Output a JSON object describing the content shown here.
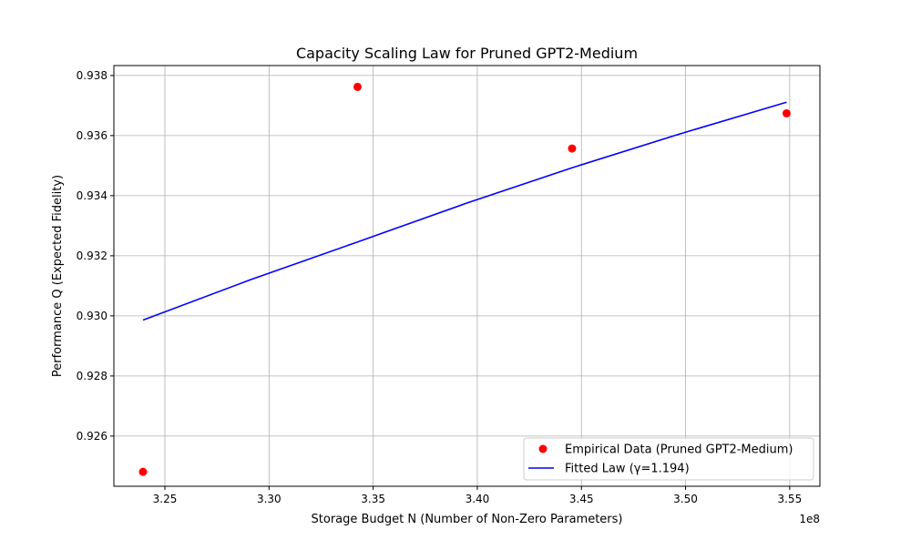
{
  "chart_data": {
    "type": "scatter",
    "title": "Capacity Scaling Law for Pruned GPT2-Medium",
    "xlabel": "Storage Budget N (Number of Non-Zero Parameters)",
    "ylabel": "Performance Q (Expected Fidelity)",
    "x_offset_label": "1e8",
    "xlim": [
      3.2255,
      3.5645
    ],
    "ylim": [
      0.92433,
      0.93833
    ],
    "x_ticks": [
      3.25,
      3.3,
      3.35,
      3.4,
      3.45,
      3.5,
      3.55
    ],
    "x_tick_labels": [
      "3.25",
      "3.30",
      "3.35",
      "3.40",
      "3.45",
      "3.50",
      "3.55"
    ],
    "y_ticks": [
      0.926,
      0.928,
      0.93,
      0.932,
      0.934,
      0.936,
      0.938
    ],
    "y_tick_labels": [
      "0.926",
      "0.928",
      "0.930",
      "0.932",
      "0.934",
      "0.936",
      "0.938"
    ],
    "grid": true,
    "legend_position": "lower-right",
    "series": [
      {
        "name": "Empirical Data (Pruned GPT2-Medium)",
        "kind": "scatter",
        "color": "#ff0000",
        "x": [
          3.2395,
          3.3425,
          3.4455,
          3.5485
        ],
        "y": [
          0.92481,
          0.93762,
          0.93557,
          0.93674
        ]
      },
      {
        "name": "Fitted Law (γ=1.194)",
        "kind": "line",
        "color": "#0000ff",
        "x": [
          3.2395,
          3.291,
          3.3425,
          3.394,
          3.4455,
          3.497,
          3.5485
        ],
        "y": [
          0.92986,
          0.9312,
          0.93246,
          0.93373,
          0.93493,
          0.93605,
          0.93711
        ]
      }
    ]
  }
}
